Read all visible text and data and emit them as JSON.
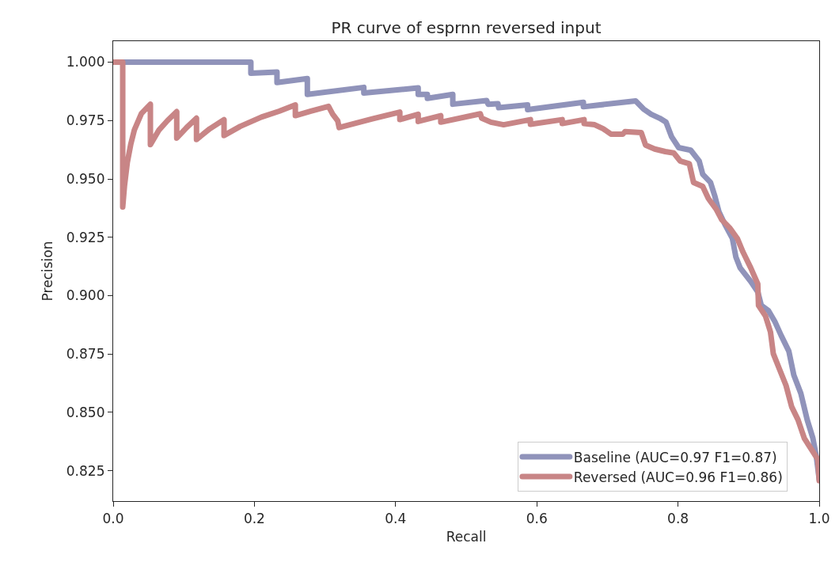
{
  "chart_data": {
    "type": "line",
    "title": "PR curve of esprnn reversed input",
    "xlabel": "Recall",
    "ylabel": "Precision",
    "xlim": [
      0,
      1
    ],
    "xticks": [
      {
        "value": 0,
        "label": "0.0"
      },
      0.2,
      0.4,
      0.6,
      0.8,
      {
        "value": 1,
        "label": "1.0"
      }
    ],
    "ylim": [
      0.812,
      1.009
    ],
    "yticks": [
      0.825,
      {
        "value": 0.85,
        "label": "0.850"
      },
      0.875,
      {
        "value": 0.9,
        "label": "0.900"
      },
      0.925,
      {
        "value": 0.95,
        "label": "0.950"
      },
      0.975,
      {
        "value": 1,
        "label": "1.000"
      }
    ],
    "grid": false,
    "legend": "bottom right",
    "marker": "none",
    "line_style": "solid",
    "series": [
      {
        "name": "Baseline (AUC=0.97 F1=0.87)",
        "color": "#9093ba",
        "x": [
          0,
          0.195,
          0.195,
          0.232,
          0.232,
          0.275,
          0.275,
          0.355,
          0.355,
          0.432,
          0.432,
          0.445,
          0.445,
          0.481,
          0.481,
          0.529,
          0.531,
          0.545,
          0.546,
          0.587,
          0.587,
          0.666,
          0.666,
          0.74,
          0.751,
          0.762,
          0.774,
          0.783,
          0.791,
          0.801,
          0.818,
          0.83,
          0.835,
          0.846,
          0.852,
          0.858,
          0.867,
          0.877,
          0.882,
          0.888,
          0.903,
          0.913,
          0.918,
          0.928,
          0.937,
          0.946,
          0.957,
          0.964,
          0.974,
          0.983,
          0.991,
          0.996,
          1.0
        ],
        "values": [
          1.0,
          1.0,
          0.9953,
          0.9958,
          0.9913,
          0.993,
          0.9862,
          0.9892,
          0.9868,
          0.989,
          0.9862,
          0.9862,
          0.9845,
          0.9862,
          0.982,
          0.9836,
          0.982,
          0.9822,
          0.9805,
          0.9817,
          0.9797,
          0.9828,
          0.9809,
          0.9834,
          0.98,
          0.9777,
          0.976,
          0.9743,
          0.968,
          0.9634,
          0.9623,
          0.9577,
          0.952,
          0.9485,
          0.9428,
          0.9359,
          0.9302,
          0.9245,
          0.9165,
          0.9119,
          0.9061,
          0.9016,
          0.8958,
          0.8936,
          0.889,
          0.883,
          0.8762,
          0.866,
          0.8581,
          0.8468,
          0.839,
          0.8309,
          0.8213
        ]
      },
      {
        "name": "Reversed (AUC=0.96 F1=0.86)",
        "color": "#c88586",
        "x": [
          0,
          0.0135,
          0.0135,
          0.016,
          0.02,
          0.025,
          0.03,
          0.04,
          0.0527,
          0.0527,
          0.065,
          0.077,
          0.09,
          0.09,
          0.104,
          0.118,
          0.118,
          0.137,
          0.157,
          0.157,
          0.18,
          0.21,
          0.235,
          0.258,
          0.258,
          0.28,
          0.305,
          0.311,
          0.318,
          0.32,
          0.367,
          0.406,
          0.406,
          0.432,
          0.432,
          0.464,
          0.464,
          0.52,
          0.522,
          0.535,
          0.553,
          0.591,
          0.591,
          0.636,
          0.636,
          0.667,
          0.667,
          0.682,
          0.694,
          0.705,
          0.722,
          0.725,
          0.748,
          0.754,
          0.767,
          0.782,
          0.794,
          0.803,
          0.816,
          0.822,
          0.835,
          0.843,
          0.854,
          0.862,
          0.873,
          0.884,
          0.892,
          0.903,
          0.913,
          0.914,
          0.924,
          0.931,
          0.935,
          0.944,
          0.953,
          0.961,
          0.97,
          0.979,
          0.991,
          0.998,
          1.0
        ],
        "values": [
          1.0,
          1.0,
          0.938,
          0.947,
          0.957,
          0.965,
          0.971,
          0.978,
          0.982,
          0.9647,
          0.971,
          0.975,
          0.9788,
          0.9675,
          0.972,
          0.976,
          0.9669,
          0.9715,
          0.9754,
          0.9686,
          0.9725,
          0.9765,
          0.979,
          0.9817,
          0.9771,
          0.979,
          0.9811,
          0.9777,
          0.9749,
          0.972,
          0.9757,
          0.9786,
          0.9754,
          0.9777,
          0.9746,
          0.9771,
          0.9743,
          0.9779,
          0.976,
          0.9743,
          0.9732,
          0.9754,
          0.9734,
          0.9754,
          0.9737,
          0.9754,
          0.9737,
          0.9732,
          0.9715,
          0.9692,
          0.9692,
          0.9703,
          0.9698,
          0.9645,
          0.9628,
          0.9617,
          0.9611,
          0.9577,
          0.9565,
          0.9485,
          0.9468,
          0.9416,
          0.9371,
          0.9325,
          0.9291,
          0.9245,
          0.9187,
          0.9119,
          0.905,
          0.8958,
          0.8912,
          0.8844,
          0.8751,
          0.8683,
          0.8615,
          0.8524,
          0.8468,
          0.8388,
          0.8332,
          0.8298,
          0.8207
        ]
      }
    ]
  }
}
